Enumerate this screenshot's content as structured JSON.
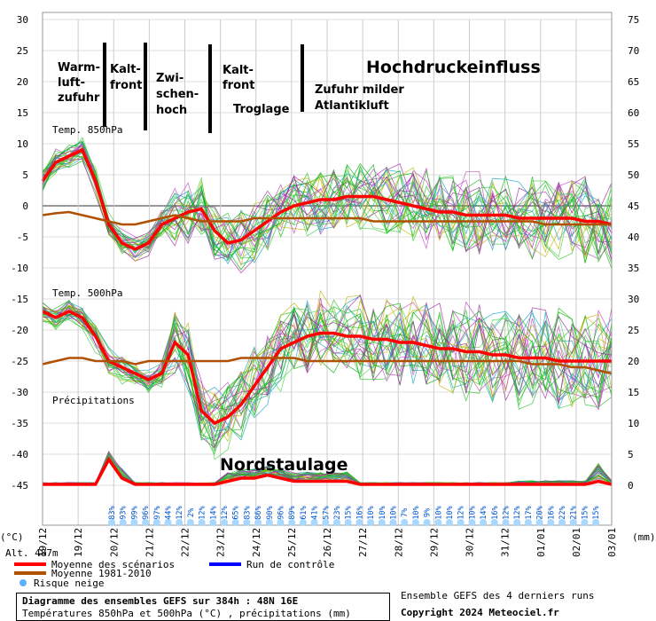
{
  "chart_data": {
    "type": "line",
    "left_axis": {
      "unit_label": "(°C)",
      "ticks": [
        30,
        25,
        20,
        15,
        10,
        5,
        0,
        -5,
        -10,
        -15,
        -20,
        -25,
        -30,
        -35,
        -40,
        -45
      ]
    },
    "right_axis": {
      "unit_label": "(mm)",
      "ticks": [
        75,
        70,
        65,
        60,
        55,
        50,
        45,
        40,
        35,
        30,
        25,
        20,
        15,
        10,
        5,
        0
      ]
    },
    "x_ticks": [
      "19/12",
      "19/12",
      "20/12",
      "21/12",
      "22/12",
      "23/12",
      "24/12",
      "25/12",
      "26/12",
      "27/12",
      "28/12",
      "29/12",
      "30/12",
      "31/12",
      "01/01",
      "02/01",
      "03/01"
    ],
    "panel_labels": {
      "t850": "Temp. 850hPa",
      "t500": "Temp. 500hPa",
      "precip": "Précipitations"
    },
    "altitude_label": "Alt. 487m",
    "snow_risk_percent": [
      "83%",
      "93%",
      "99%",
      "96%",
      "97%",
      "44%",
      "12%",
      "2%",
      "12%",
      "14%",
      "12%",
      "65%",
      "83%",
      "86%",
      "90%",
      "96%",
      "89%",
      "61%",
      "41%",
      "57%",
      "23%",
      "15%",
      "16%",
      "10%",
      "10%",
      "10%",
      "7%",
      "10%",
      "9%",
      "10%",
      "10%",
      "12%",
      "10%",
      "14%",
      "16%",
      "12%",
      "12%",
      "17%",
      "20%",
      "16%",
      "22%",
      "21%",
      "15%",
      "15%"
    ],
    "series": [
      {
        "name": "Moyenne des scénarios",
        "color": "#ff0000",
        "t850": [
          4,
          7,
          8,
          9,
          4,
          -3,
          -6,
          -7,
          -6,
          -3,
          -2,
          -1,
          -0.5,
          -4,
          -6,
          -5.5,
          -4,
          -2.5,
          -1,
          0,
          0.5,
          1,
          1,
          1.5,
          1.5,
          1.5,
          1,
          0.5,
          0,
          -0.5,
          -1,
          -1,
          -1.5,
          -1.5,
          -1.5,
          -1.5,
          -2,
          -2,
          -2,
          -2,
          -2,
          -2.5,
          -2.5,
          -3
        ],
        "t500": [
          -17,
          -18,
          -17,
          -18,
          -21,
          -25,
          -26,
          -27,
          -28,
          -27,
          -22,
          -24,
          -33,
          -35,
          -34,
          -32,
          -29,
          -26,
          -23,
          -22,
          -21,
          -20.5,
          -20.5,
          -21,
          -21,
          -21.5,
          -21.5,
          -22,
          -22,
          -22.5,
          -23,
          -23,
          -23.5,
          -23.5,
          -24,
          -24,
          -24.5,
          -24.5,
          -24.5,
          -25,
          -25,
          -25,
          -25,
          -25
        ],
        "precip": [
          0,
          0,
          0,
          0,
          0,
          4,
          1,
          0,
          0,
          0,
          0,
          0,
          0,
          0,
          0.5,
          1,
          1,
          1.5,
          1,
          0.5,
          0.5,
          0.5,
          0.5,
          0.5,
          0,
          0,
          0,
          0,
          0,
          0,
          0,
          0,
          0,
          0,
          0,
          0,
          0,
          0,
          0,
          0,
          0,
          0,
          0.5,
          0
        ]
      },
      {
        "name": "Moyenne 1981-2010",
        "color": "#b05000",
        "t850": [
          -1.5,
          -1.2,
          -1,
          -1.5,
          -2,
          -2.5,
          -3,
          -3,
          -2.5,
          -2,
          -1.5,
          -2,
          -2.5,
          -2.5,
          -2.5,
          -2.5,
          -2,
          -2,
          -2,
          -2,
          -2,
          -2,
          -2,
          -2,
          -2,
          -2.5,
          -2.5,
          -2.5,
          -2.5,
          -2.5,
          -2.5,
          -2.5,
          -2.5,
          -2.5,
          -2.5,
          -2.5,
          -2.5,
          -2.5,
          -3,
          -3,
          -3,
          -3,
          -3,
          -3
        ],
        "t500": [
          -25.5,
          -25,
          -24.5,
          -24.5,
          -25,
          -25,
          -25,
          -25.5,
          -25,
          -25,
          -25,
          -25,
          -25,
          -25,
          -25,
          -24.5,
          -24.5,
          -24.5,
          -24.5,
          -24.5,
          -25,
          -25,
          -25,
          -25,
          -25,
          -25,
          -25,
          -25,
          -25,
          -25,
          -25,
          -25,
          -25,
          -25,
          -25,
          -25,
          -25,
          -25.5,
          -25.5,
          -25.5,
          -26,
          -26,
          -26.5,
          -27
        ]
      },
      {
        "name": "Run de contrôle",
        "color": "#0000ff"
      }
    ],
    "annotations": [
      {
        "text": "Warm-",
        "line": 0
      },
      {
        "text": "luft-",
        "line": 1
      },
      {
        "text": "zufuhr",
        "line": 2
      },
      {
        "text": "Kalt-",
        "line": 0
      },
      {
        "text": "front",
        "line": 1
      },
      {
        "text": "Zwi-",
        "line": 0
      },
      {
        "text": "schen-",
        "line": 1
      },
      {
        "text": "hoch",
        "line": 2
      },
      {
        "text": "Kalt-",
        "line": 0
      },
      {
        "text": "front",
        "line": 1
      },
      {
        "text": "Troglage",
        "line": 0
      },
      {
        "text": "Zufuhr milder",
        "line": 0
      },
      {
        "text": "Atlantikluft",
        "line": 1
      },
      {
        "text": "Hochdruckeinfluss",
        "line": 0
      },
      {
        "text": "Nordstaulage",
        "line": 0
      }
    ],
    "legend": {
      "snow": "Risque neige"
    },
    "grid": true
  },
  "footer": {
    "title": "Diagramme des ensembles GEFS sur 384h : 48N 16E",
    "subtitle": "Températures 850hPa et 500hPa (°C) , précipitations (mm)",
    "right_top": "Ensemble GEFS des 4 derniers runs",
    "right_bottom": "Copyright 2024 Meteociel.fr"
  }
}
